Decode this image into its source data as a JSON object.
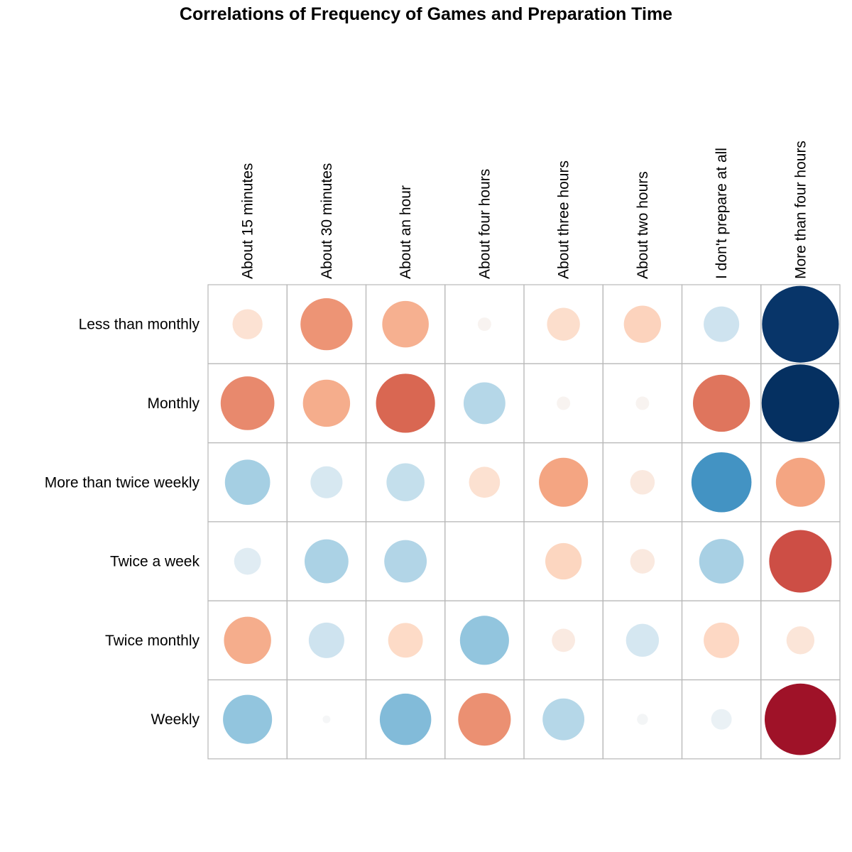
{
  "chart_data": {
    "type": "heatmap",
    "title": "Correlations of Frequency of Games and Preparation Time",
    "columns": [
      "About 15 minutes",
      "About 30 minutes",
      "About an hour",
      "About four hours",
      "About three hours",
      "About two hours",
      "I don't prepare at all",
      "More than four hours"
    ],
    "rows": [
      "Less than monthly",
      "Monthly",
      "More than twice weekly",
      "Twice a week",
      "Twice monthly",
      "Weekly"
    ],
    "values": [
      [
        -0.15,
        -0.45,
        -0.36,
        -0.03,
        -0.18,
        -0.23,
        0.21,
        0.98
      ],
      [
        -0.48,
        -0.37,
        -0.58,
        0.29,
        -0.03,
        -0.03,
        -0.54,
        1.0
      ],
      [
        0.34,
        0.17,
        0.24,
        -0.16,
        -0.4,
        -0.1,
        0.6,
        -0.4
      ],
      [
        0.12,
        0.32,
        0.3,
        0.0,
        -0.22,
        -0.1,
        0.33,
        -0.65
      ],
      [
        -0.37,
        0.21,
        -0.2,
        0.4,
        -0.09,
        0.18,
        -0.21,
        -0.13
      ],
      [
        0.4,
        0.01,
        0.44,
        -0.46,
        0.29,
        0.02,
        0.07,
        -0.85
      ]
    ],
    "color_scale": {
      "min": -1,
      "max": 1,
      "negative_color": "#b2182b",
      "positive_color": "#053061",
      "mid_color": "#f7f7f7"
    },
    "encoding": "circle size and color represent correlation",
    "grid": true,
    "legend": "none"
  }
}
